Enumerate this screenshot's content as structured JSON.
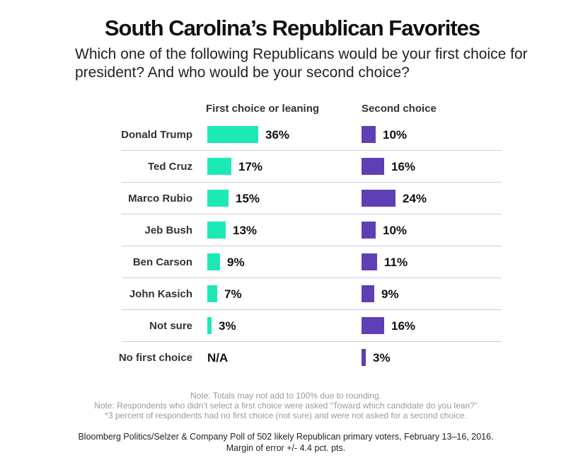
{
  "chart_data": {
    "type": "bar",
    "title": "South Carolina’s Republican Favorites",
    "subtitle": "Which one of the following Republicans would be your first choice for president? And who would be your second choice?",
    "categories": [
      "Donald Trump",
      "Ted Cruz",
      "Marco Rubio",
      "Jeb Bush",
      "Ben Carson",
      "John Kasich",
      "Not sure",
      "No first choice"
    ],
    "series": [
      {
        "name": "First choice or leaning",
        "color": "#1de9b6",
        "values": [
          36,
          17,
          15,
          13,
          9,
          7,
          3,
          null
        ],
        "labels": [
          "36%",
          "17%",
          "15%",
          "13%",
          "9%",
          "7%",
          "3%",
          "N/A"
        ]
      },
      {
        "name": "Second choice",
        "color": "#5e3fb5",
        "values": [
          10,
          16,
          24,
          10,
          11,
          9,
          16,
          3
        ],
        "labels": [
          "10%",
          "16%",
          "24%",
          "10%",
          "11%",
          "9%",
          "16%",
          "3%"
        ]
      }
    ],
    "xlim": [
      0,
      40
    ],
    "xlabel": "",
    "ylabel": ""
  },
  "notes": {
    "line1": "Note: Totals may not add to 100% due to rounding.",
    "line2": "Note: Respondents who didn’t select a first choice were asked “Toward which candidate do you lean?”",
    "line3": "*3 percent of respondents had no first choice (not sure) and were not asked for a second choice."
  },
  "source": {
    "line1": "Bloomberg Politics/Selzer & Company Poll of 502 likely Republican primary voters, February 13–16, 2016.",
    "line2": "Margin of error +/- 4.4 pct. pts."
  }
}
